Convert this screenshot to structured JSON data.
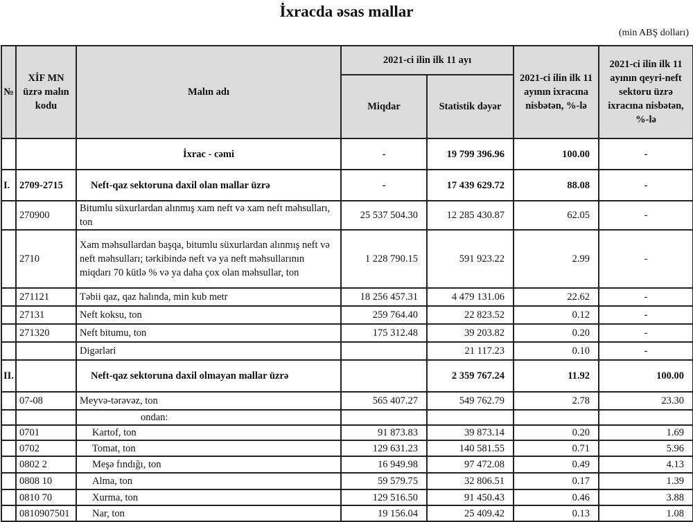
{
  "title": "İxracda əsas mallar",
  "unit": "(min ABŞ dolları)",
  "headers": {
    "no": "№",
    "code": "XİF MN üzrə malın kodu",
    "name": "Malın adı",
    "period": "2021-ci ilin ilk 11 ayı",
    "quantity": "Miqdar",
    "value": "Statistik dəyər",
    "share_total": "2021-ci ilin ilk 11 ayının ixracına nisbətən, %-lə",
    "share_nonoil": "2021-ci ilin ilk 11 ayının qeyri-neft sektoru üzrə ixracına nisbətən, %-lə"
  },
  "rows": [
    {
      "type": "total",
      "no": "",
      "code": "",
      "name": "İxrac - cəmi",
      "qty": "-",
      "value": "19 799 396.96",
      "share": "100.00",
      "nonoil": "-"
    },
    {
      "type": "section",
      "no": "I.",
      "code": "2709-2715",
      "name": "Neft-qaz sektoruna daxil olan mallar üzrə",
      "qty": "-",
      "value": "17 439 629.72",
      "share": "88.08",
      "nonoil": "-"
    },
    {
      "type": "item",
      "no": "",
      "code": "270900",
      "name": "Bitumlu süxurlardan alınmış xam neft və xam neft məhsulları, ton",
      "qty": "25 537 504.30",
      "value": "12 285 430.87",
      "share": "62.05",
      "nonoil": "-"
    },
    {
      "type": "item",
      "no": "",
      "code": "2710",
      "name": "Xam məhsullardan başqa, bitumlu süxurlardan alınmış neft və neft məhsulları; tərkibində neft və ya neft məhsullarının miqdarı 70 kütlə % və ya daha çox olan məhsullar, ton",
      "qty": "1 228 790.15",
      "value": "591 923.22",
      "share": "2.99",
      "nonoil": "-"
    },
    {
      "type": "item",
      "no": "",
      "code": "271121",
      "name": "Təbii qaz, qaz halında, min kub metr",
      "qty": "18 256 457.31",
      "value": "4 479 131.06",
      "share": "22.62",
      "nonoil": "-"
    },
    {
      "type": "item",
      "no": "",
      "code": "27131",
      "name": "Neft koksu, ton",
      "qty": "259 764.40",
      "value": "22 823.52",
      "share": "0.12",
      "nonoil": "-"
    },
    {
      "type": "item",
      "no": "",
      "code": "271320",
      "name": "Neft bitumu, ton",
      "qty": "175 312.48",
      "value": "39 203.82",
      "share": "0.20",
      "nonoil": "-"
    },
    {
      "type": "item",
      "no": "",
      "code": "",
      "name": "Digərləri",
      "qty": "",
      "value": "21 117.23",
      "share": "0.10",
      "nonoil": "-"
    },
    {
      "type": "section",
      "no": "II.",
      "code": "",
      "name": "Neft-qaz sektoruna daxil olmayan mallar üzrə",
      "qty": "",
      "value": "2 359 767.24",
      "share": "11.92",
      "nonoil": "100.00"
    },
    {
      "type": "item",
      "no": "",
      "code": "07-08",
      "name": "Meyvə-tərəvəz, ton",
      "qty": "565 407.27",
      "value": "549 762.79",
      "share": "2.78",
      "nonoil": "23.30"
    },
    {
      "type": "of",
      "no": "",
      "code": "",
      "name": "ondan:",
      "qty": "",
      "value": "",
      "share": "",
      "nonoil": ""
    },
    {
      "type": "sub",
      "no": "",
      "code": "0701",
      "name": "Kartof, ton",
      "qty": "91 873.83",
      "value": "39 873.14",
      "share": "0.20",
      "nonoil": "1.69"
    },
    {
      "type": "sub",
      "no": "",
      "code": "0702",
      "name": "Tomat, ton",
      "qty": "129 631.23",
      "value": "140 581.55",
      "share": "0.71",
      "nonoil": "5.96"
    },
    {
      "type": "sub",
      "no": "",
      "code": "0802 2",
      "name": "Meşə fındığı, ton",
      "qty": "16 949.98",
      "value": "97 472.08",
      "share": "0.49",
      "nonoil": "4.13"
    },
    {
      "type": "sub",
      "no": "",
      "code": "0808 10",
      "name": "Alma, ton",
      "qty": "59 579.75",
      "value": "32 806.51",
      "share": "0.17",
      "nonoil": "1.39"
    },
    {
      "type": "sub",
      "no": "",
      "code": "0810 70",
      "name": "Xurma, ton",
      "qty": "129 516.50",
      "value": "91 450.43",
      "share": "0.46",
      "nonoil": "3.88"
    },
    {
      "type": "sub",
      "no": "",
      "code": "0810907501",
      "name": "Nar, ton",
      "qty": "19 156.04",
      "value": "25 409.42",
      "share": "0.13",
      "nonoil": "1.08"
    }
  ]
}
